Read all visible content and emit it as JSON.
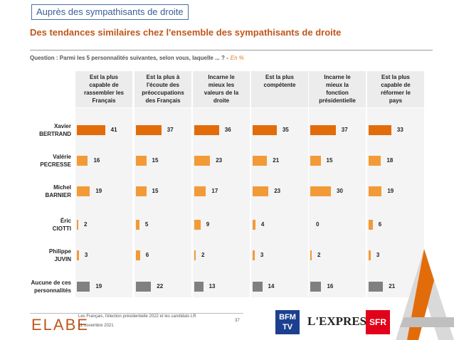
{
  "tag": "Auprès des sympathisants de droite",
  "headline": "Des tendances similaires chez l'ensemble des sympathisants de droite",
  "question": "Question : Parmi les 5 personnalités suivantes, selon vous, laquelle ... ? -",
  "question_unit": "En %",
  "chart_data": {
    "type": "bar",
    "columns": [
      [
        "Est la plus",
        "capable de",
        "rassembler les",
        "Français"
      ],
      [
        "Est la plus à",
        "l'écoute des",
        "préoccupations",
        "des Français"
      ],
      [
        "Incarne le",
        "mieux les",
        "valeurs de la",
        "droite"
      ],
      [
        "Est la plus",
        "compétente"
      ],
      [
        "Incarne le",
        "mieux la",
        "fonction",
        "présidentielle"
      ],
      [
        "Est la plus",
        "capable de",
        "réformer le",
        "pays"
      ]
    ],
    "rows": [
      [
        "Xavier",
        "BERTRAND"
      ],
      [
        "Valérie",
        "PECRESSE"
      ],
      [
        "Michel",
        "BARNIER"
      ],
      [
        "Éric",
        "CIOTTI"
      ],
      [
        "Philippe",
        "JUVIN"
      ],
      [
        "Aucune de ces",
        "personnalités"
      ]
    ],
    "values": [
      [
        41,
        37,
        36,
        35,
        37,
        33
      ],
      [
        16,
        15,
        23,
        21,
        15,
        18
      ],
      [
        19,
        15,
        17,
        23,
        30,
        19
      ],
      [
        2,
        5,
        9,
        4,
        0,
        6
      ],
      [
        3,
        6,
        2,
        3,
        2,
        3
      ],
      [
        19,
        22,
        13,
        14,
        16,
        21
      ]
    ],
    "xlim": [
      0,
      60
    ],
    "colors": {
      "lead": "#e36c0a",
      "standard": "#f39a38",
      "highlight": "#d65f0c",
      "none": "#808080"
    }
  },
  "footer": {
    "logo": "ELABE",
    "source": "Les Français, l'élection présidentielle 2022 et les candidats LR",
    "date": "11 novembre 2021",
    "page": "37",
    "partners": [
      "BFM TV",
      "L'EXPRESS",
      "SFR"
    ]
  }
}
